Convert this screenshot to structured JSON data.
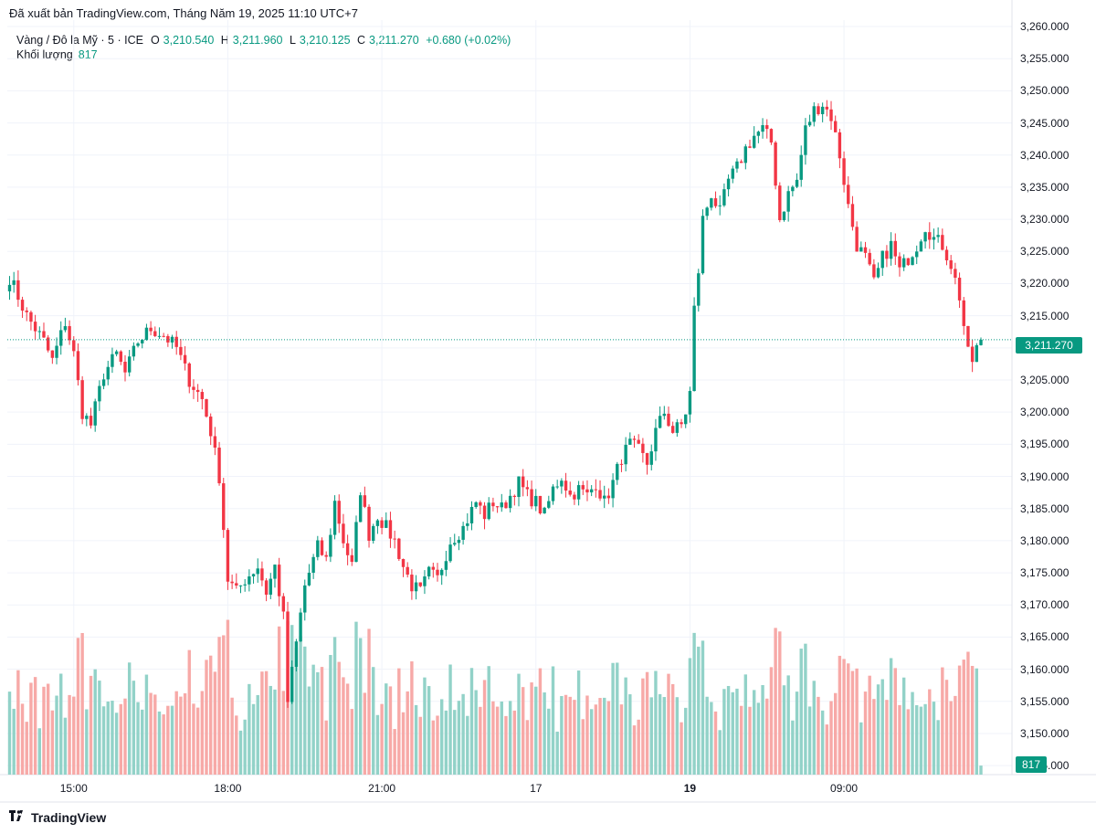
{
  "published": "Đã xuất bản TradingView.com, Tháng Năm 19, 2025 11:10 UTC+7",
  "legend": {
    "symbol": "Vàng / Đô la Mỹ · 5 · ICE",
    "o_label": "O",
    "o_value": "3,210.540",
    "h_label": "H",
    "h_value": "3,211.960",
    "l_label": "L",
    "l_value": "3,210.125",
    "c_label": "C",
    "c_value": "3,211.270",
    "change": "+0.680 (+0.02%)",
    "volume_label": "Khối lượng",
    "volume_value": "817"
  },
  "price_badge": "3,211.270",
  "volume_badge": "817",
  "footer": {
    "brand": "TradingView",
    "logo": "tradingview-logo-icon"
  },
  "colors": {
    "up": "#089981",
    "down": "#f23645",
    "up_vol": "#92d2c8",
    "down_vol": "#f7a9a7",
    "grid": "#f0f3fa"
  },
  "chart_data": {
    "type": "candlestick",
    "y_ticks": [
      "3,260.000",
      "3,255.000",
      "3,250.000",
      "3,245.000",
      "3,240.000",
      "3,235.000",
      "3,230.000",
      "3,225.000",
      "3,220.000",
      "3,215.000",
      "3,210.000",
      "3,205.000",
      "3,200.000",
      "3,195.000",
      "3,190.000",
      "3,185.000",
      "3,180.000",
      "3,175.000",
      "3,170.000",
      "3,165.000",
      "3,160.000",
      "3,155.000",
      "3,150.000",
      "3,145.000"
    ],
    "y_tick_values": [
      3260,
      3255,
      3250,
      3245,
      3240,
      3235,
      3230,
      3225,
      3220,
      3215,
      3210,
      3205,
      3200,
      3195,
      3190,
      3185,
      3180,
      3175,
      3170,
      3165,
      3160,
      3155,
      3150,
      3145
    ],
    "ylim": [
      3143.6,
      3261.0
    ],
    "x_ticks": [
      {
        "label": "15:00",
        "bar": 15,
        "bold": false
      },
      {
        "label": "18:00",
        "bar": 51,
        "bold": false
      },
      {
        "label": "21:00",
        "bar": 87,
        "bold": false
      },
      {
        "label": "17",
        "bar": 123,
        "bold": false
      },
      {
        "label": "19",
        "bar": 159,
        "bold": true
      },
      {
        "label": "09:00",
        "bar": 195,
        "bold": false
      }
    ],
    "last_price": 3211.27,
    "price_path": [
      [
        0,
        3221
      ],
      [
        4,
        3215
      ],
      [
        8,
        3211
      ],
      [
        10,
        3208
      ],
      [
        13,
        3214
      ],
      [
        15,
        3209
      ],
      [
        17,
        3200
      ],
      [
        19,
        3198
      ],
      [
        22,
        3206
      ],
      [
        25,
        3209
      ],
      [
        27,
        3206
      ],
      [
        30,
        3211
      ],
      [
        33,
        3213
      ],
      [
        36,
        3212
      ],
      [
        39,
        3210
      ],
      [
        42,
        3205
      ],
      [
        45,
        3202
      ],
      [
        47,
        3197
      ],
      [
        49,
        3190
      ],
      [
        51,
        3174
      ],
      [
        53,
        3172
      ],
      [
        55,
        3174
      ],
      [
        58,
        3176
      ],
      [
        60,
        3172
      ],
      [
        62,
        3176
      ],
      [
        64,
        3168
      ],
      [
        65,
        3155
      ],
      [
        67,
        3164
      ],
      [
        69,
        3173
      ],
      [
        72,
        3179
      ],
      [
        74,
        3177
      ],
      [
        76,
        3186
      ],
      [
        78,
        3180
      ],
      [
        80,
        3176
      ],
      [
        82,
        3188
      ],
      [
        84,
        3181
      ],
      [
        86,
        3184
      ],
      [
        88,
        3182
      ],
      [
        90,
        3180
      ],
      [
        92,
        3176
      ],
      [
        94,
        3173
      ],
      [
        96,
        3172
      ],
      [
        98,
        3175
      ],
      [
        100,
        3174
      ],
      [
        103,
        3180
      ],
      [
        106,
        3182
      ],
      [
        109,
        3186
      ],
      [
        111,
        3184
      ],
      [
        113,
        3186
      ],
      [
        115,
        3185
      ],
      [
        117,
        3187
      ],
      [
        119,
        3189
      ],
      [
        121,
        3187
      ],
      [
        123,
        3186
      ],
      [
        125,
        3184
      ],
      [
        127,
        3188
      ],
      [
        129,
        3190
      ],
      [
        131,
        3187
      ],
      [
        133,
        3188
      ],
      [
        135,
        3187
      ],
      [
        137,
        3189
      ],
      [
        139,
        3186
      ],
      [
        141,
        3189
      ],
      [
        143,
        3193
      ],
      [
        145,
        3195
      ],
      [
        147,
        3194
      ],
      [
        149,
        3192
      ],
      [
        151,
        3197
      ],
      [
        153,
        3200
      ],
      [
        155,
        3197
      ],
      [
        157,
        3198
      ],
      [
        158,
        3200
      ],
      [
        159,
        3203
      ],
      [
        160,
        3216
      ],
      [
        161,
        3222
      ],
      [
        162,
        3230
      ],
      [
        164,
        3234
      ],
      [
        166,
        3231
      ],
      [
        168,
        3236
      ],
      [
        170,
        3238
      ],
      [
        172,
        3241
      ],
      [
        174,
        3243
      ],
      [
        176,
        3244
      ],
      [
        178,
        3242
      ],
      [
        180,
        3230
      ],
      [
        182,
        3234
      ],
      [
        184,
        3236
      ],
      [
        186,
        3244
      ],
      [
        188,
        3247
      ],
      [
        190,
        3248
      ],
      [
        192,
        3246
      ],
      [
        194,
        3240
      ],
      [
        196,
        3232
      ],
      [
        198,
        3226
      ],
      [
        200,
        3224
      ],
      [
        202,
        3220
      ],
      [
        204,
        3224
      ],
      [
        206,
        3226
      ],
      [
        208,
        3222
      ],
      [
        210,
        3224
      ],
      [
        212,
        3226
      ],
      [
        214,
        3229
      ],
      [
        216,
        3227
      ],
      [
        218,
        3226
      ],
      [
        220,
        3223
      ],
      [
        222,
        3218
      ],
      [
        224,
        3209
      ],
      [
        225,
        3208
      ],
      [
        226,
        3210
      ],
      [
        227,
        3211.27
      ]
    ],
    "volume_max": 15000,
    "volume_note": "volume scale unlabeled; last bar 817"
  }
}
